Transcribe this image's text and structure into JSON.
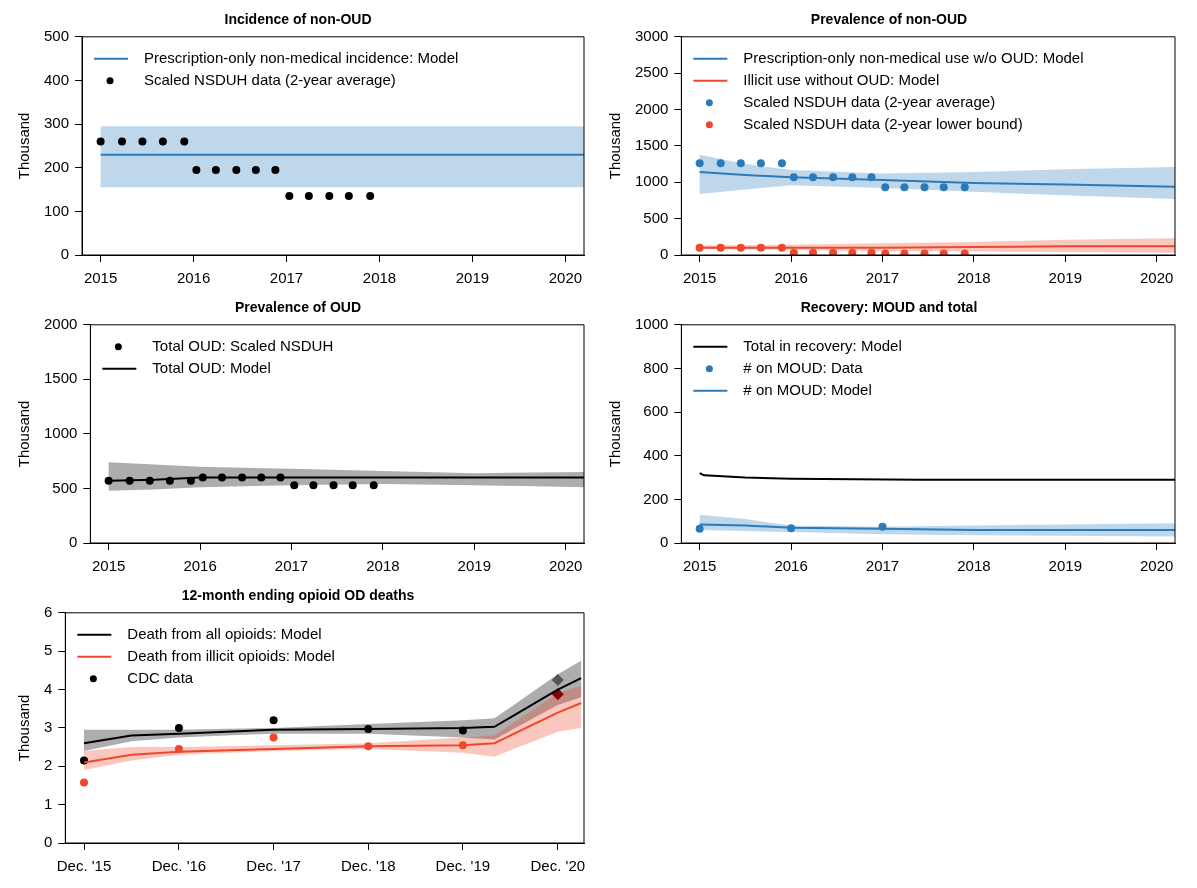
{
  "chart_data": [
    {
      "type": "line",
      "title": "Incidence of non-OUD",
      "ylabel": "Thousand",
      "xlim": [
        2014.8,
        2020.2
      ],
      "xticks": [
        2015,
        2016,
        2017,
        2018,
        2019,
        2020
      ],
      "ylim": [
        0,
        500
      ],
      "yticks": [
        0,
        100,
        200,
        300,
        400,
        500
      ],
      "legend": "top left",
      "grid": false,
      "series": [
        {
          "name": "Prescription-only non-medical incidence: Model",
          "color": "#2b7bba",
          "x": [
            2015,
            2020.2
          ],
          "values": [
            230,
            230
          ],
          "lower": [
            155,
            155
          ],
          "upper": [
            295,
            295
          ]
        },
        {
          "name": "Scaled NSDUH data (2-year average)",
          "type": "scatter",
          "marker": "circle",
          "color": "#000000",
          "x": [
            2015,
            2015.23,
            2015.45,
            2015.67,
            2015.9,
            2016.03,
            2016.24,
            2016.46,
            2016.67,
            2016.88,
            2017.03,
            2017.24,
            2017.46,
            2017.67,
            2017.9
          ],
          "values": [
            260,
            260,
            260,
            260,
            260,
            195,
            195,
            195,
            195,
            195,
            135,
            135,
            135,
            135,
            135
          ]
        }
      ]
    },
    {
      "type": "line",
      "title": "Prevalence of non-OUD",
      "ylabel": "Thousand",
      "xlim": [
        2014.8,
        2020.2
      ],
      "xticks": [
        2015,
        2016,
        2017,
        2018,
        2019,
        2020
      ],
      "ylim": [
        0,
        3000
      ],
      "yticks": [
        0,
        500,
        1000,
        1500,
        2000,
        2500,
        3000
      ],
      "legend": "top left",
      "grid": false,
      "series": [
        {
          "name": "Prescription-only non-medical use w/o OUD: Model",
          "color": "#2b7bba",
          "x": [
            2015,
            2015.5,
            2016,
            2017,
            2018,
            2019,
            2020.2
          ],
          "values": [
            1140,
            1100,
            1070,
            1030,
            990,
            970,
            940
          ],
          "lower": [
            840,
            900,
            960,
            920,
            870,
            820,
            770
          ],
          "upper": [
            1380,
            1250,
            1170,
            1120,
            1140,
            1180,
            1210
          ]
        },
        {
          "name": "Illicit use without OUD: Model",
          "color": "#f0462c",
          "x": [
            2015,
            2016,
            2017,
            2018,
            2019,
            2020.2
          ],
          "values": [
            100,
            100,
            100,
            110,
            120,
            120
          ],
          "lower": [
            80,
            70,
            55,
            50,
            40,
            30
          ],
          "upper": [
            130,
            140,
            160,
            180,
            210,
            230
          ]
        },
        {
          "name": "Scaled NSDUH data (2-year average)",
          "type": "scatter",
          "marker": "circle",
          "color": "#2b7bba",
          "x": [
            2015,
            2015.23,
            2015.45,
            2015.67,
            2015.9,
            2016.03,
            2016.24,
            2016.46,
            2016.67,
            2016.88,
            2017.03,
            2017.24,
            2017.46,
            2017.67,
            2017.9
          ],
          "values": [
            1260,
            1260,
            1260,
            1260,
            1260,
            1070,
            1070,
            1070,
            1070,
            1070,
            930,
            930,
            930,
            930,
            930
          ]
        },
        {
          "name": "Scaled NSDUH data (2-year lower bound)",
          "type": "scatter",
          "marker": "circle",
          "color": "#f0462c",
          "x": [
            2015,
            2015.23,
            2015.45,
            2015.67,
            2015.9,
            2016.03,
            2016.24,
            2016.46,
            2016.67,
            2016.88,
            2017.03,
            2017.24,
            2017.46,
            2017.67,
            2017.9
          ],
          "values": [
            100,
            100,
            100,
            100,
            100,
            30,
            30,
            30,
            30,
            30,
            20,
            20,
            20,
            20,
            20
          ]
        }
      ]
    },
    {
      "type": "line",
      "title": "Prevalence of OUD",
      "ylabel": "Thousand",
      "xlim": [
        2014.8,
        2020.2
      ],
      "xticks": [
        2015,
        2016,
        2017,
        2018,
        2019,
        2020
      ],
      "ylim": [
        0,
        2000
      ],
      "yticks": [
        0,
        500,
        1000,
        1500,
        2000
      ],
      "legend": "top left",
      "grid": false,
      "series": [
        {
          "name": "Total OUD: Scaled NSDUH",
          "type": "scatter",
          "marker": "circle",
          "color": "#000000",
          "x": [
            2015,
            2015.23,
            2015.45,
            2015.67,
            2015.9,
            2016.03,
            2016.24,
            2016.46,
            2016.67,
            2016.88,
            2017.03,
            2017.24,
            2017.46,
            2017.67,
            2017.9
          ],
          "values": [
            570,
            570,
            570,
            570,
            570,
            600,
            600,
            600,
            600,
            600,
            530,
            530,
            530,
            530,
            530
          ]
        },
        {
          "name": "Total OUD: Model",
          "color": "#000000",
          "x": [
            2015,
            2015.5,
            2016,
            2017,
            2018,
            2019,
            2020.2
          ],
          "values": [
            570,
            580,
            600,
            600,
            600,
            600,
            600
          ],
          "lower": [
            480,
            490,
            510,
            530,
            540,
            530,
            510
          ],
          "upper": [
            740,
            720,
            700,
            680,
            660,
            640,
            650
          ]
        }
      ]
    },
    {
      "type": "line",
      "title": "Recovery: MOUD and total",
      "ylabel": "Thousand",
      "xlim": [
        2014.8,
        2020.2
      ],
      "xticks": [
        2015,
        2016,
        2017,
        2018,
        2019,
        2020
      ],
      "ylim": [
        0,
        1000
      ],
      "yticks": [
        0,
        200,
        400,
        600,
        800,
        1000
      ],
      "legend": "top left",
      "grid": false,
      "series": [
        {
          "name": "Total in recovery: Model",
          "color": "#000000",
          "x": [
            2015,
            2015.05,
            2015.5,
            2016,
            2017.4,
            2018,
            2020.2
          ],
          "values": [
            320,
            310,
            300,
            295,
            290,
            290,
            290
          ]
        },
        {
          "name": "# on MOUD: Data",
          "type": "scatter",
          "marker": "circle",
          "color": "#2b7bba",
          "x": [
            2015,
            2016,
            2017
          ],
          "values": [
            65,
            68,
            75
          ]
        },
        {
          "name": "# on MOUD: Model",
          "color": "#2b7bba",
          "x": [
            2015,
            2015.5,
            2016,
            2017,
            2018,
            2020.2
          ],
          "values": [
            85,
            80,
            70,
            65,
            60,
            60
          ],
          "lower": [
            60,
            55,
            50,
            40,
            35,
            30
          ],
          "upper": [
            130,
            110,
            80,
            75,
            80,
            90
          ]
        }
      ]
    },
    {
      "type": "line",
      "title": "12-month ending opioid OD deaths",
      "ylabel": "Thousand",
      "xlim": [
        "2015-09-20",
        "2021-03-12"
      ],
      "xticks": [
        {
          "value": "2015-12",
          "label": "Dec. '15"
        },
        {
          "value": "2016-12",
          "label": "Dec. '16"
        },
        {
          "value": "2017-12",
          "label": "Dec. '17"
        },
        {
          "value": "2018-12",
          "label": "Dec. '18"
        },
        {
          "value": "2019-12",
          "label": "Dec. '19"
        },
        {
          "value": "2020-12",
          "label": "Dec. '20"
        }
      ],
      "ylim": [
        0,
        6
      ],
      "yticks": [
        0,
        1,
        2,
        3,
        4,
        5,
        6
      ],
      "legend": "top left",
      "grid": false,
      "series": [
        {
          "name": "Death from all opioids: Model",
          "color": "#000000",
          "x": [
            "2015-12",
            "2016-06",
            "2016-12",
            "2017-12",
            "2018-12",
            "2019-12",
            "2020-04",
            "2020-12",
            "2021-03"
          ],
          "values": [
            2.6,
            2.8,
            2.85,
            2.95,
            2.97,
            3.0,
            3.03,
            4.0,
            4.3
          ],
          "lower": [
            2.4,
            2.65,
            2.75,
            2.85,
            2.85,
            2.75,
            2.7,
            3.6,
            3.8
          ],
          "upper": [
            2.95,
            2.95,
            2.95,
            3.0,
            3.1,
            3.2,
            3.25,
            4.4,
            4.75
          ]
        },
        {
          "name": "Death from illicit opioids: Model",
          "color": "#f0462c",
          "x": [
            "2015-12",
            "2016-06",
            "2016-12",
            "2017-12",
            "2018-12",
            "2019-12",
            "2020-04",
            "2020-12",
            "2021-03"
          ],
          "values": [
            2.1,
            2.3,
            2.38,
            2.45,
            2.52,
            2.55,
            2.6,
            3.4,
            3.65
          ],
          "lower": [
            1.9,
            2.15,
            2.3,
            2.4,
            2.45,
            2.35,
            2.25,
            2.9,
            3.0
          ],
          "upper": [
            2.4,
            2.5,
            2.5,
            2.55,
            2.6,
            2.75,
            2.8,
            3.9,
            4.1
          ]
        },
        {
          "name": "CDC data",
          "type": "scatter",
          "marker": "circle",
          "color": "#000000",
          "x": [
            "2015-12",
            "2016-12",
            "2017-12",
            "2018-12",
            "2019-12"
          ],
          "values": [
            2.15,
            3.0,
            3.2,
            2.97,
            2.93
          ]
        },
        {
          "type": "scatter",
          "marker": "circle",
          "color": "#f0462c",
          "x": [
            "2015-12",
            "2016-12",
            "2017-12",
            "2018-12",
            "2019-12"
          ],
          "values": [
            1.58,
            2.45,
            2.75,
            2.52,
            2.55
          ]
        },
        {
          "type": "scatter",
          "marker": "diamond",
          "color": "#555555",
          "x": [
            "2020-12"
          ],
          "values": [
            4.25
          ]
        },
        {
          "type": "scatter",
          "marker": "diamond",
          "color": "#8b0000",
          "x": [
            "2020-12"
          ],
          "values": [
            3.88
          ]
        }
      ]
    }
  ]
}
